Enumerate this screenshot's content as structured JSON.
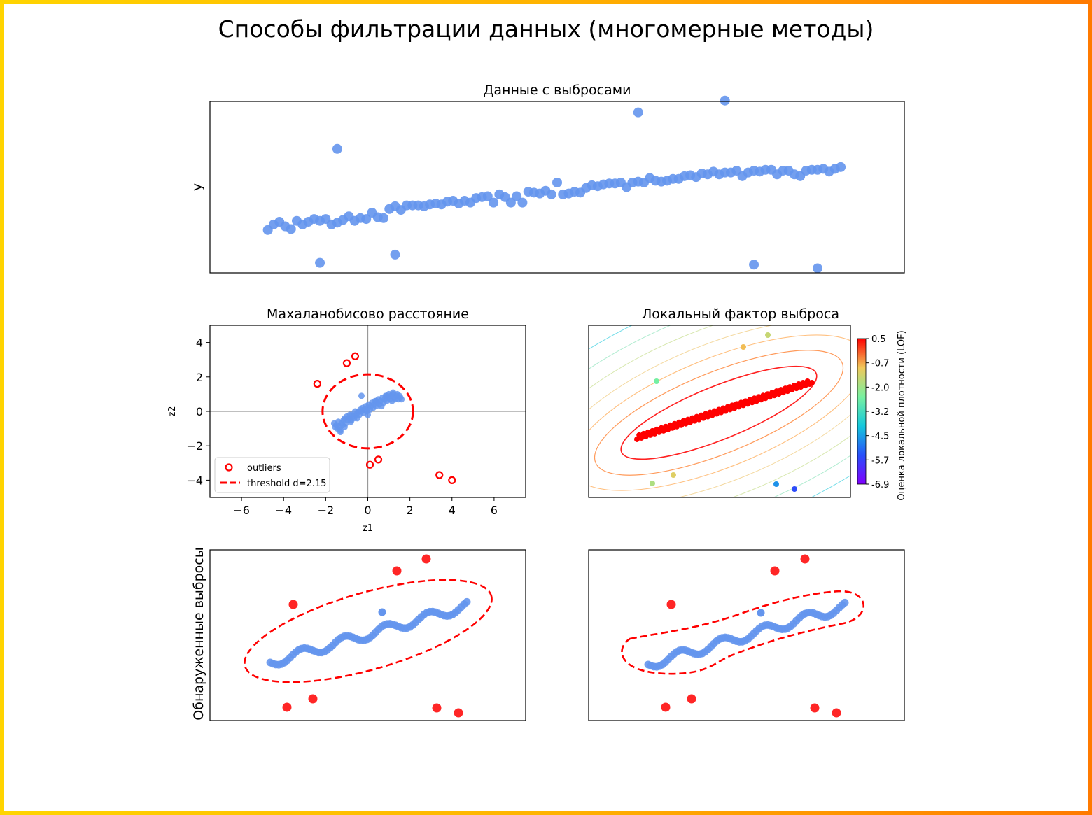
{
  "page": {
    "title": "Способы фильтрации данных (многомерные методы)"
  },
  "colors": {
    "point_blue": "#6495ed",
    "outlier_red": "#ff0000",
    "frame_gradient": [
      "#ffd400",
      "#ff7a00"
    ]
  },
  "chart_data": [
    {
      "id": "raw",
      "type": "scatter",
      "title": "Данные с выбросами",
      "xlabel": "",
      "ylabel": "y",
      "xlim": [
        -10,
        110
      ],
      "ylim": [
        -46,
        142
      ],
      "show_ticks": false,
      "points_x": [
        0,
        1,
        2,
        3,
        4,
        5,
        6,
        7,
        8,
        9,
        10,
        11,
        12,
        13,
        14,
        15,
        16,
        17,
        18,
        19,
        20,
        21,
        22,
        23,
        24,
        25,
        26,
        27,
        28,
        29,
        30,
        31,
        32,
        33,
        34,
        35,
        36,
        37,
        38,
        39,
        40,
        41,
        42,
        43,
        44,
        45,
        46,
        47,
        48,
        49,
        50,
        51,
        52,
        53,
        54,
        55,
        56,
        57,
        58,
        59,
        60,
        61,
        62,
        63,
        64,
        65,
        66,
        67,
        68,
        69,
        70,
        71,
        72,
        73,
        74,
        75,
        76,
        77,
        78,
        79,
        80,
        81,
        82,
        83,
        84,
        85,
        86,
        87,
        88,
        89,
        90,
        91,
        92,
        93,
        94,
        95,
        96,
        97,
        98,
        99
      ],
      "points_y": [
        1,
        7,
        10,
        5,
        2,
        11,
        7,
        10,
        13,
        11,
        13,
        7,
        9,
        12,
        16,
        11,
        14,
        13,
        20,
        15,
        14,
        24,
        27,
        23,
        28,
        28,
        28,
        27,
        29,
        30,
        29,
        32,
        33,
        30,
        33,
        31,
        36,
        37,
        38,
        31,
        40,
        37,
        31,
        38,
        31,
        43,
        42,
        41,
        44,
        40,
        53,
        40,
        41,
        43,
        42,
        47,
        50,
        49,
        51,
        52,
        52,
        53,
        48,
        53,
        54,
        53,
        58,
        55,
        54,
        55,
        57,
        57,
        60,
        61,
        59,
        63,
        62,
        65,
        62,
        64,
        64,
        66,
        60,
        64,
        66,
        65,
        67,
        67,
        62,
        66,
        66,
        62,
        60,
        66,
        67,
        67,
        68,
        65,
        68,
        70
      ],
      "outliers_x": [
        12,
        9,
        22,
        64,
        79,
        84,
        95
      ],
      "outliers_y": [
        90,
        -35,
        -26,
        130,
        143,
        -37,
        -41
      ]
    },
    {
      "id": "mahalanobis",
      "type": "scatter",
      "title": "Махаланобисово расстояние",
      "xlabel": "z1",
      "ylabel": "z2",
      "xlim": [
        -7.5,
        7.5
      ],
      "ylim": [
        -5,
        5
      ],
      "xticks": [
        "−6",
        "−4",
        "−2",
        "0",
        "2",
        "4",
        "6"
      ],
      "yticks": [
        "−4",
        "−2",
        "0",
        "2",
        "4"
      ],
      "inliers_z1": [
        -1.6,
        -1.55,
        -1.5,
        -1.45,
        -1.4,
        -1.35,
        -1.3,
        -1.25,
        -1.2,
        -1.15,
        -1.1,
        -1.05,
        -1.0,
        -0.95,
        -0.9,
        -0.85,
        -0.8,
        -0.75,
        -0.7,
        -0.65,
        -0.6,
        -0.55,
        -0.5,
        -0.45,
        -0.4,
        -0.35,
        -0.3,
        -0.25,
        -0.2,
        -0.15,
        -0.1,
        -0.05,
        0.0,
        0.05,
        0.1,
        0.15,
        0.2,
        0.25,
        0.3,
        0.35,
        0.4,
        0.45,
        0.5,
        0.55,
        0.6,
        0.65,
        0.7,
        0.75,
        0.8,
        0.85,
        0.9,
        0.95,
        1.0,
        1.05,
        1.1,
        1.15,
        1.2,
        1.25,
        1.3,
        1.35,
        1.4,
        1.45,
        1.5,
        1.55,
        1.6,
        -0.3,
        -1.3,
        -1.1,
        -0.8,
        -0.5,
        0.0,
        0.4,
        0.9,
        1.2
      ],
      "inliers_z2": [
        -0.7,
        -0.9,
        -0.8,
        -1.0,
        -0.6,
        -0.9,
        -1.1,
        -0.7,
        -0.8,
        -0.5,
        -0.4,
        -0.7,
        -0.3,
        -0.5,
        -0.4,
        -0.2,
        -0.5,
        -0.2,
        -0.3,
        -0.4,
        0.0,
        -0.2,
        -0.1,
        0.0,
        -0.2,
        0.1,
        0.0,
        0.2,
        -0.1,
        0.1,
        0.3,
        0.0,
        0.2,
        0.4,
        0.1,
        0.3,
        0.5,
        0.2,
        0.4,
        0.6,
        0.3,
        0.5,
        0.7,
        0.4,
        0.6,
        0.3,
        0.8,
        0.5,
        0.7,
        0.9,
        0.6,
        0.8,
        1.0,
        0.7,
        0.9,
        0.6,
        1.0,
        0.8,
        0.7,
        0.9,
        1.0,
        0.7,
        0.9,
        0.8,
        0.7,
        0.9,
        -1.2,
        -0.9,
        -0.6,
        -0.4,
        -0.2,
        0.6,
        0.9,
        1.1
      ],
      "outliers_z1": [
        -2.4,
        -1.0,
        -0.6,
        0.1,
        0.5,
        3.4,
        4.0
      ],
      "outliers_z2": [
        1.6,
        2.8,
        3.2,
        -3.1,
        -2.8,
        -3.7,
        -4.0
      ],
      "threshold_radius": 2.15,
      "legend": [
        "outliers",
        "threshold d=2.15"
      ],
      "legend_position": "lower-left"
    },
    {
      "id": "lof",
      "type": "contour",
      "title": "Локальный фактор выброса",
      "colorbar_label": "Оценка локальной плотности (LOF)",
      "colorbar_ticks": [
        "0.5",
        "-0.7",
        "-2.0",
        "-3.2",
        "-4.5",
        "-5.7",
        "-6.9"
      ],
      "colorbar_range": [
        -6.9,
        0.5
      ],
      "points_x": [
        0,
        1,
        2,
        3,
        4,
        5,
        6,
        7,
        8,
        9,
        10,
        11,
        12,
        13,
        14,
        15,
        16,
        17,
        18,
        19,
        20,
        21,
        22,
        23,
        24,
        25,
        26,
        27,
        28,
        29,
        30,
        31,
        32,
        33,
        34,
        35,
        36,
        37,
        38,
        39,
        40,
        41,
        42,
        43,
        44,
        45,
        46,
        47,
        48,
        49,
        50,
        51,
        52,
        53,
        54,
        55,
        56,
        57,
        58,
        59,
        60,
        61,
        62,
        63,
        64,
        65,
        66,
        67,
        68,
        69,
        70,
        71,
        72,
        73,
        74,
        75,
        76,
        77,
        78,
        79
      ],
      "points_y": [
        1,
        4,
        2,
        5,
        3,
        6,
        4,
        7,
        5,
        8,
        6,
        9,
        7,
        10,
        8,
        11,
        9,
        12,
        10,
        13,
        11,
        14,
        12,
        15,
        13,
        16,
        14,
        17,
        15,
        18,
        16,
        19,
        17,
        20,
        18,
        21,
        19,
        22,
        20,
        23,
        21,
        24,
        22,
        25,
        23,
        26,
        24,
        27,
        25,
        28,
        26,
        29,
        27,
        30,
        28,
        31,
        29,
        32,
        30,
        33,
        31,
        34,
        32,
        35,
        33,
        36,
        34,
        37,
        35,
        38,
        36,
        39,
        37,
        40,
        38,
        41,
        39,
        42,
        40,
        41
      ],
      "outlier_scores": [
        -0.9,
        -2.5,
        -1.5,
        -1.8,
        -1.2,
        -4.6,
        -5.5
      ]
    },
    {
      "id": "detected",
      "type": "scatter",
      "ylabel": "Обнаруженные выбросы",
      "method": [
        "mahalanobis",
        "lof"
      ]
    }
  ]
}
